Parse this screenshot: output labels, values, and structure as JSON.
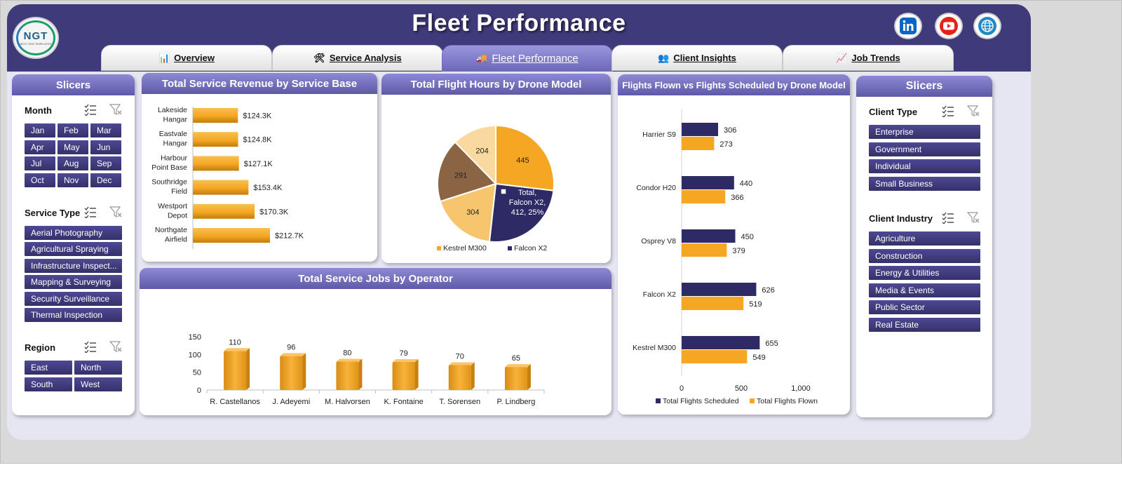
{
  "header": {
    "title": "Fleet Performance",
    "logo_text": "NGT",
    "logo_subtext": "NEXT GEN TEMPLATES"
  },
  "tabs": [
    {
      "label": "Overview",
      "icon": "chart-icon",
      "active": false
    },
    {
      "label": "Service Analysis",
      "icon": "tools-icon",
      "active": false
    },
    {
      "label": "Fleet Performance",
      "icon": "truck-icon",
      "active": true
    },
    {
      "label": "Client Insights",
      "icon": "people-icon",
      "active": false
    },
    {
      "label": "Job Trends",
      "icon": "trend-icon",
      "active": false
    }
  ],
  "social": [
    "linkedin-icon",
    "youtube-icon",
    "globe-icon"
  ],
  "left_slicers": {
    "title": "Slicers",
    "month": {
      "label": "Month",
      "items": [
        "Jan",
        "Feb",
        "Mar",
        "Apr",
        "May",
        "Jun",
        "Jul",
        "Aug",
        "Sep",
        "Oct",
        "Nov",
        "Dec"
      ]
    },
    "service_type": {
      "label": "Service Type",
      "items": [
        "Aerial Photography",
        "Agricultural Spraying",
        "Infrastructure Inspect...",
        "Mapping & Surveying",
        "Security Surveillance",
        "Thermal Inspection"
      ]
    },
    "region": {
      "label": "Region",
      "items": [
        "East",
        "North",
        "South",
        "West"
      ]
    }
  },
  "right_slicers": {
    "title": "Slicers",
    "client_type": {
      "label": "Client Type",
      "items": [
        "Enterprise",
        "Government",
        "Individual",
        "Small Business"
      ]
    },
    "client_industry": {
      "label": "Client Industry",
      "items": [
        "Agriculture",
        "Construction",
        "Energy & Utilities",
        "Media & Events",
        "Public Sector",
        "Real Estate"
      ]
    }
  },
  "chart_data": [
    {
      "id": "revenue",
      "type": "bar",
      "orientation": "horizontal",
      "title": "Total Service Revenue by Service Base",
      "categories": [
        [
          "Lakeside",
          "Hangar"
        ],
        [
          "Eastvale",
          "Hangar"
        ],
        [
          "Harbour",
          "Point Base"
        ],
        [
          "Southridge",
          "Field"
        ],
        [
          "Westport",
          "Depot"
        ],
        [
          "Northgate",
          "Airfield"
        ]
      ],
      "values": [
        124.3,
        124.8,
        127.1,
        153.4,
        170.3,
        212.7
      ],
      "labels": [
        "$124.3K",
        "$124.8K",
        "$127.1K",
        "$153.4K",
        "$170.3K",
        "$212.7K"
      ],
      "color": "#f5a623"
    },
    {
      "id": "hours",
      "type": "pie",
      "title": "Total Flight Hours by Drone Model",
      "slices": [
        {
          "name": "Kestrel M300",
          "value": 445,
          "color": "#f5a623"
        },
        {
          "name": "Falcon X2",
          "value": 412,
          "color": "#2e2a66"
        },
        {
          "name": "",
          "value": 304,
          "color": "#f7c56e"
        },
        {
          "name": "",
          "value": 291,
          "color": "#8b6543"
        },
        {
          "name": "",
          "value": 204,
          "color": "#fad9a0"
        }
      ],
      "labels": [
        "445",
        "",
        "304",
        "291",
        "204"
      ],
      "tooltip": [
        "Total,",
        "Falcon X2,",
        "412, 25%"
      ],
      "legend": [
        "Kestrel M300",
        "Falcon X2"
      ]
    },
    {
      "id": "jobs",
      "type": "bar",
      "title": "Total Service Jobs by Operator",
      "categories": [
        "R. Castellanos",
        "J. Adeyemi",
        "M. Halvorsen",
        "K. Fontaine",
        "T. Sorensen",
        "P. Lindberg"
      ],
      "values": [
        110,
        96,
        80,
        79,
        70,
        65
      ],
      "ylim": [
        0,
        150
      ],
      "yticks": [
        "0",
        "50",
        "100",
        "150"
      ],
      "color": "#f5a623"
    },
    {
      "id": "flights",
      "type": "bar",
      "orientation": "horizontal",
      "title": "Flights Flown vs Flights Scheduled by Drone Model",
      "categories": [
        "Harrier S9",
        "Condor H20",
        "Osprey V8",
        "Falcon X2",
        "Kestrel M300"
      ],
      "series": [
        {
          "name": "Total Flights Scheduled",
          "values": [
            306,
            440,
            450,
            626,
            655
          ],
          "color": "#2e2a66"
        },
        {
          "name": "Total Flights Flown",
          "values": [
            273,
            366,
            379,
            519,
            549
          ],
          "color": "#f5a623"
        }
      ],
      "xlim": [
        0,
        1000
      ],
      "xticks": [
        "0",
        "500",
        "1,000"
      ]
    }
  ]
}
